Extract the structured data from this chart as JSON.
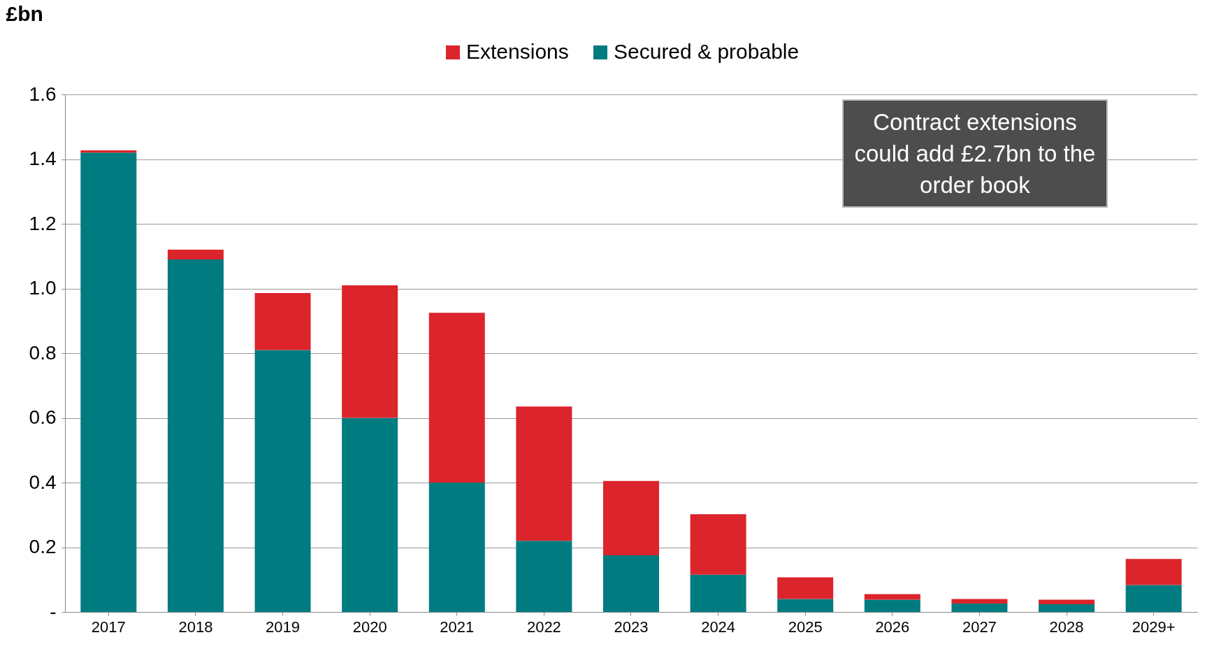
{
  "chart_data": {
    "type": "bar",
    "stacked": true,
    "ylabel": "£bn",
    "categories": [
      "2017",
      "2018",
      "2019",
      "2020",
      "2021",
      "2022",
      "2023",
      "2024",
      "2025",
      "2026",
      "2027",
      "2028",
      "2029+"
    ],
    "series": [
      {
        "name": "Secured & probable",
        "color": "#007b80",
        "values": [
          1.42,
          1.09,
          0.81,
          0.6,
          0.4,
          0.22,
          0.175,
          0.115,
          0.04,
          0.038,
          0.026,
          0.024,
          0.083
        ]
      },
      {
        "name": "Extensions",
        "color": "#dc242c",
        "values": [
          0.007,
          0.03,
          0.176,
          0.41,
          0.525,
          0.415,
          0.23,
          0.187,
          0.067,
          0.017,
          0.014,
          0.014,
          0.081
        ]
      }
    ],
    "ylim": [
      0,
      1.6
    ],
    "yticks": [
      {
        "value": 0,
        "label": "-"
      },
      0.2,
      0.4,
      0.6,
      0.8,
      {
        "value": 1.0,
        "label": "1.0"
      },
      1.2,
      1.4,
      1.6
    ],
    "grid": "y",
    "legend": "top",
    "annotations": [
      "Contract extensions could add £2.7bn to the order book"
    ]
  }
}
